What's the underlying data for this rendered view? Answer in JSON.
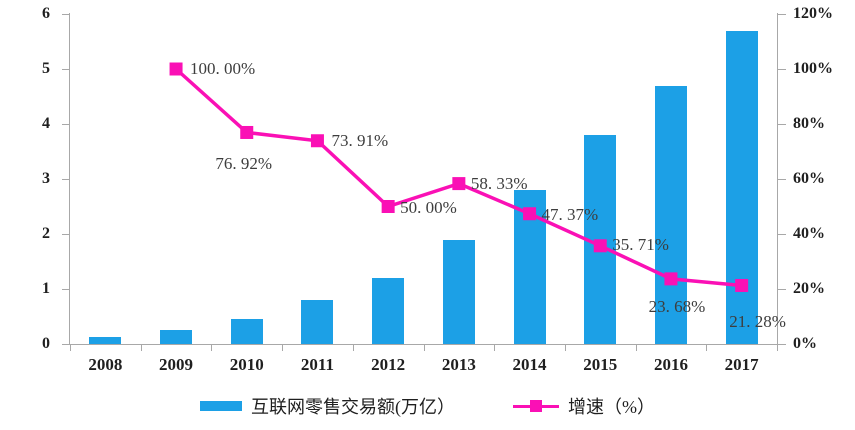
{
  "chart_data": {
    "type": "combo-bar-line",
    "categories": [
      "2008",
      "2009",
      "2010",
      "2011",
      "2012",
      "2013",
      "2014",
      "2015",
      "2016",
      "2017"
    ],
    "series": [
      {
        "name": "互联网零售交易额(万亿）",
        "type": "bar",
        "axis": "left",
        "color": "#1CA0E6",
        "values": [
          0.13,
          0.26,
          0.46,
          0.8,
          1.2,
          1.9,
          2.8,
          3.8,
          4.7,
          5.7
        ]
      },
      {
        "name": "增速（%）",
        "type": "line",
        "axis": "right",
        "color": "#FA10B5",
        "values": [
          null,
          100.0,
          76.92,
          73.91,
          50.0,
          58.33,
          47.37,
          35.71,
          23.68,
          21.28
        ],
        "labels": [
          null,
          "100. 00%",
          "76. 92%",
          "73. 91%",
          "50. 00%",
          "58. 33%",
          "47. 37%",
          "35. 71%",
          "23. 68%",
          "21. 28%"
        ],
        "label_placement": [
          null,
          {
            "align": "left",
            "dx": 14,
            "dy": 0
          },
          {
            "align": "center",
            "dx": -3,
            "dy": 22
          },
          {
            "align": "left",
            "dx": 14,
            "dy": 0
          },
          {
            "align": "left",
            "dx": 12,
            "dy": 1
          },
          {
            "align": "left",
            "dx": 12,
            "dy": 0
          },
          {
            "align": "left",
            "dx": 12,
            "dy": 1
          },
          {
            "align": "left",
            "dx": 12,
            "dy": -1
          },
          {
            "align": "center",
            "dx": 6,
            "dy": 18
          },
          {
            "align": "center",
            "dx": 16,
            "dy": 27
          }
        ]
      }
    ],
    "left_axis": {
      "min": 0,
      "max": 6,
      "ticks": [
        "0",
        "1",
        "2",
        "3",
        "4",
        "5",
        "6"
      ]
    },
    "right_axis": {
      "min": 0,
      "max": 120,
      "tick_values": [
        0,
        20,
        40,
        60,
        80,
        100,
        120
      ],
      "ticks": [
        "0%",
        "20%",
        "40%",
        "60%",
        "80%",
        "100%",
        "120%"
      ]
    },
    "grid": false,
    "legend_position": "bottom",
    "title": ""
  }
}
